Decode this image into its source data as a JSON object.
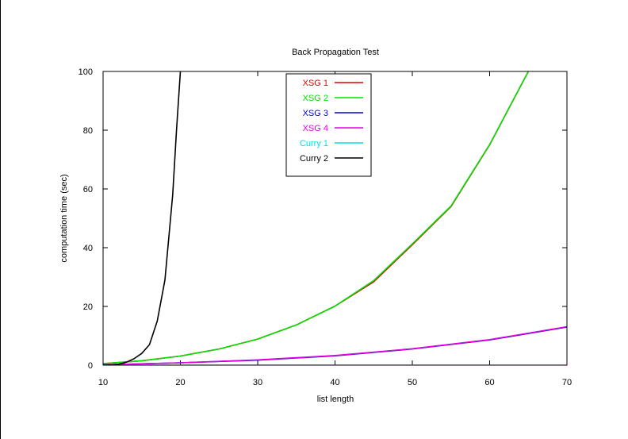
{
  "chart_data": {
    "type": "line",
    "title": "Back Propagation Test",
    "xlabel": "list length",
    "ylabel": "computation time (sec)",
    "xlim": [
      10,
      70
    ],
    "ylim": [
      0,
      100
    ],
    "xticks": [
      10,
      20,
      30,
      40,
      50,
      60,
      70
    ],
    "yticks": [
      0,
      20,
      40,
      60,
      80,
      100
    ],
    "grid": false,
    "legend_position": "top-center",
    "series": [
      {
        "name": "XSG 1",
        "color": "#e00000",
        "x": [
          10,
          15,
          20,
          25,
          30,
          35,
          40,
          45,
          50,
          55,
          60,
          65
        ],
        "values": [
          0.5,
          1.5,
          3.1,
          5.5,
          8.9,
          13.7,
          20.1,
          28.4,
          41.0,
          54.0,
          75.0,
          100.0
        ]
      },
      {
        "name": "XSG 2",
        "color": "#00e000",
        "x": [
          10,
          15,
          20,
          25,
          30,
          35,
          40,
          45,
          50,
          55,
          60,
          65
        ],
        "values": [
          0.5,
          1.5,
          3.1,
          5.5,
          8.9,
          13.7,
          20.1,
          28.8,
          41.3,
          54.2,
          75.1,
          100.0
        ]
      },
      {
        "name": "XSG 3",
        "color": "#0000e0",
        "x": [
          10,
          20,
          30,
          40,
          50,
          60,
          70
        ],
        "values": [
          0.1,
          0.8,
          1.7,
          3.2,
          5.5,
          8.6,
          13.0
        ]
      },
      {
        "name": "XSG 4",
        "color": "#e000e0",
        "x": [
          10,
          20,
          30,
          40,
          50,
          60,
          70
        ],
        "values": [
          0.1,
          0.8,
          1.8,
          3.3,
          5.6,
          8.7,
          13.1
        ]
      },
      {
        "name": "Curry 1",
        "color": "#00e0e0",
        "x": [
          10,
          20,
          30,
          40,
          50,
          60,
          70
        ],
        "values": [
          0,
          0,
          0,
          0,
          0,
          0,
          0
        ]
      },
      {
        "name": "Curry 2",
        "color": "#000000",
        "x": [
          10,
          11,
          12,
          13,
          14,
          15,
          16,
          17,
          18,
          19,
          19.5,
          20
        ],
        "values": [
          0,
          0.1,
          0.3,
          1.0,
          2.2,
          4.0,
          7.0,
          15.0,
          29.0,
          58.0,
          80.0,
          100.0
        ]
      }
    ]
  }
}
